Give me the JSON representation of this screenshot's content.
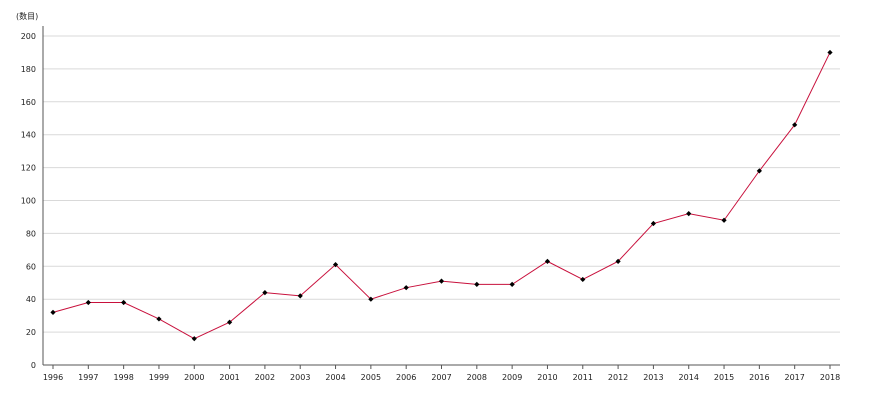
{
  "chart_data": {
    "type": "line",
    "title": "",
    "ylabel": "(数目)",
    "xlabel": "",
    "x": [
      "1996",
      "1997",
      "1998",
      "1999",
      "2000",
      "2001",
      "2002",
      "2003",
      "2004",
      "2005",
      "2006",
      "2007",
      "2008",
      "2009",
      "2010",
      "2011",
      "2012",
      "2013",
      "2014",
      "2015",
      "2016",
      "2017",
      "2018"
    ],
    "y_ticks": [
      "0",
      "20",
      "40",
      "60",
      "80",
      "100",
      "120",
      "140",
      "160",
      "180",
      "200"
    ],
    "ylim": [
      0,
      200
    ],
    "grid": true,
    "legend": "none",
    "series": [
      {
        "values": [
          32,
          38,
          38,
          28,
          16,
          26,
          44,
          42,
          61,
          40,
          47,
          51,
          49,
          49,
          63,
          52,
          63,
          86,
          92,
          88,
          118,
          146,
          190
        ],
        "line_color": "#c8103c",
        "marker_color": "#000000"
      }
    ]
  }
}
